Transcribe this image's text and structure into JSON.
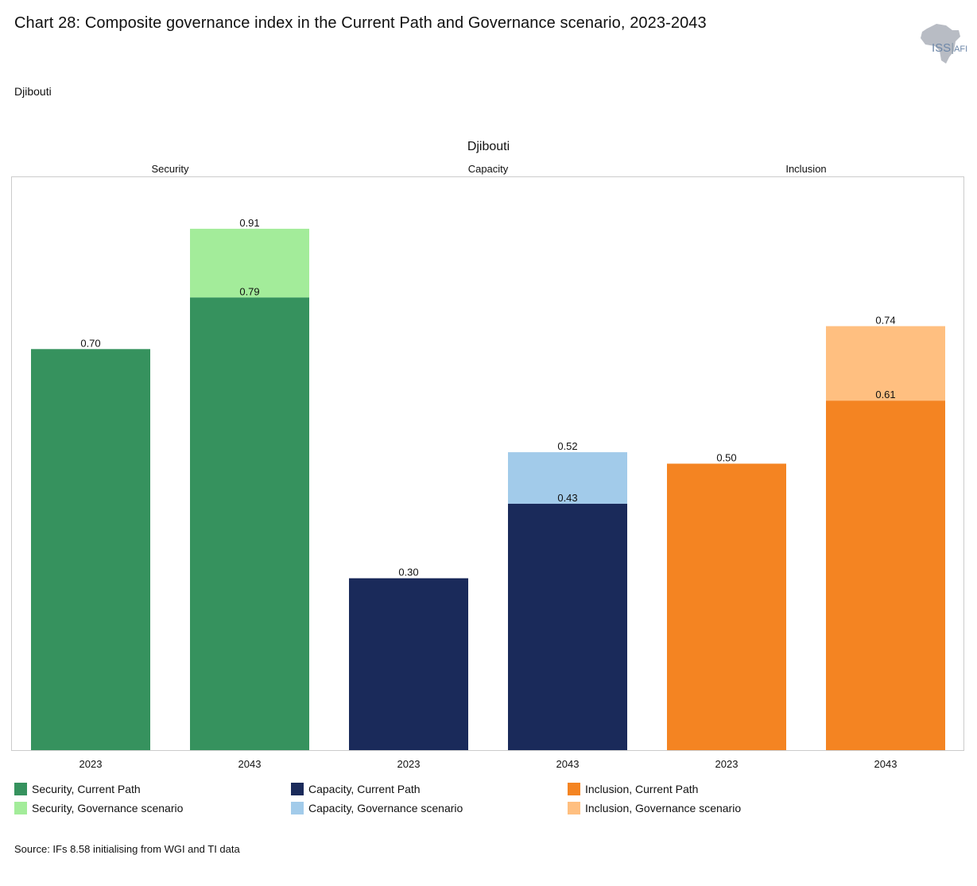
{
  "header": {
    "title": "Chart 28: Composite governance index in the Current Path and Governance scenario, 2023-2043",
    "subtitle": "Djibouti",
    "logo_text": "ISS",
    "logo_suffix": "AFI"
  },
  "chart_data": {
    "type": "bar",
    "title": "Djibouti",
    "ylim": [
      0,
      1
    ],
    "grid": false,
    "legend_placement": "bottom",
    "panels": [
      {
        "name": "Security",
        "categories": [
          "2023",
          "2043"
        ],
        "series": [
          {
            "name": "Security, Current Path",
            "values": [
              0.7,
              0.79
            ],
            "color": "#36925e"
          },
          {
            "name": "Security, Governance scenario",
            "values": [
              0.7,
              0.91
            ],
            "color": "#a3ec9a"
          }
        ]
      },
      {
        "name": "Capacity",
        "categories": [
          "2023",
          "2043"
        ],
        "series": [
          {
            "name": "Capacity, Current Path",
            "values": [
              0.3,
              0.43
            ],
            "color": "#1a2a5a"
          },
          {
            "name": "Capacity, Governance scenario",
            "values": [
              0.3,
              0.52
            ],
            "color": "#a2cbea"
          }
        ]
      },
      {
        "name": "Inclusion",
        "categories": [
          "2023",
          "2043"
        ],
        "series": [
          {
            "name": "Inclusion, Current Path",
            "values": [
              0.5,
              0.61
            ],
            "color": "#f48422"
          },
          {
            "name": "Inclusion, Governance scenario",
            "values": [
              0.5,
              0.74
            ],
            "color": "#ffbf80"
          }
        ]
      }
    ]
  },
  "legend": [
    {
      "label": "Security, Current Path",
      "color": "#36925e"
    },
    {
      "label": "Security, Governance scenario",
      "color": "#a3ec9a"
    },
    {
      "label": "Capacity, Current Path",
      "color": "#1a2a5a"
    },
    {
      "label": "Capacity, Governance scenario",
      "color": "#a2cbea"
    },
    {
      "label": "Inclusion, Current Path",
      "color": "#f48422"
    },
    {
      "label": "Inclusion, Governance scenario",
      "color": "#ffbf80"
    }
  ],
  "footer": {
    "source": "Source: IFs 8.58 initialising from WGI and TI data"
  }
}
